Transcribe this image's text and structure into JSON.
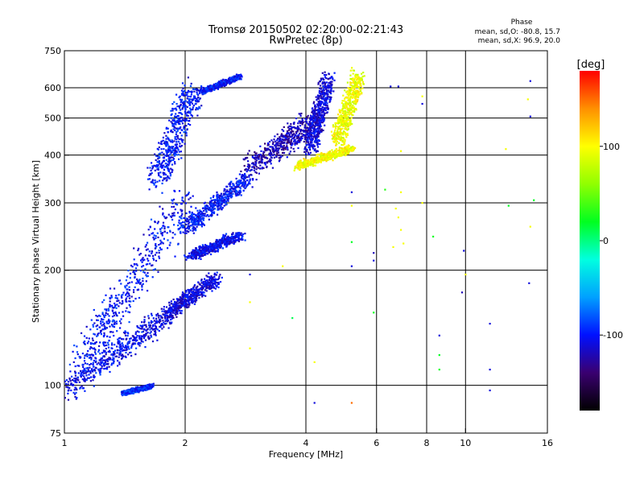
{
  "chart_data": {
    "type": "scatter",
    "title_line1": "Tromsø 20150502 02:20:00-02:21:43",
    "title_line2": "RwPretec (8p)",
    "xlabel": "Frequency [MHz]",
    "ylabel": "Stationary phase Virtual Height [km]",
    "x_scale": "log",
    "y_scale": "log",
    "xlim": [
      1,
      16
    ],
    "ylim": [
      75,
      750
    ],
    "x_ticks": [
      1,
      2,
      4,
      6,
      8,
      10,
      16
    ],
    "y_ticks": [
      75,
      100,
      200,
      300,
      400,
      500,
      600,
      750
    ],
    "grid_x": [
      2,
      4,
      6,
      8,
      10
    ],
    "grid_y": [
      100,
      200,
      300,
      400,
      500,
      600
    ],
    "colorbar": {
      "label": "[deg]",
      "range": [
        -180,
        180
      ],
      "ticks": [
        100,
        0,
        -100
      ],
      "colors": [
        "#000000",
        "#3a0070",
        "#0010ff",
        "#00a0ff",
        "#00ffe0",
        "#00ff20",
        "#90ff00",
        "#ffff00",
        "#ff9000",
        "#ff0000"
      ]
    },
    "phase_stats": {
      "title": "Phase",
      "line1": "mean, sd,O: -80.8, 15.7",
      "line2": "mean, sd,X:  96.9, 20.0"
    },
    "traces": [
      {
        "name": "lower-band",
        "f": [
          1.0,
          1.8
        ],
        "h": [
          93,
          158
        ],
        "phase": -105,
        "spread": 0.1
      },
      {
        "name": "low-echo",
        "f": [
          1.4,
          1.65
        ],
        "h": [
          95,
          100
        ],
        "phase": -95,
        "spread": 0.03
      },
      {
        "name": "E-F1-column",
        "f": [
          1.1,
          2.0
        ],
        "h": [
          105,
          330
        ],
        "phase": -100,
        "spread": 0.14
      },
      {
        "name": "F1-lower-trace",
        "f": [
          1.8,
          2.4
        ],
        "h": [
          150,
          195
        ],
        "phase": -110,
        "spread": 0.07
      },
      {
        "name": "F-spread-column",
        "f": [
          1.7,
          2.1
        ],
        "h": [
          330,
          630
        ],
        "phase": -100,
        "spread": 0.12
      },
      {
        "name": "mid-trace",
        "f": [
          2.05,
          2.75
        ],
        "h": [
          215,
          250
        ],
        "phase": -105,
        "spread": 0.06
      },
      {
        "name": "F2-O-trace",
        "f": [
          2.0,
          2.9
        ],
        "h": [
          250,
          360
        ],
        "phase": -100,
        "spread": 0.07
      },
      {
        "name": "upper-arm",
        "f": [
          2.2,
          2.75
        ],
        "h": [
          580,
          650
        ],
        "phase": -100,
        "spread": 0.03
      },
      {
        "name": "F2-O-cusp",
        "f": [
          2.9,
          4.2
        ],
        "h": [
          360,
          510
        ],
        "phase": -120,
        "spread": 0.12
      },
      {
        "name": "F2-O-top",
        "f": [
          4.1,
          4.55
        ],
        "h": [
          400,
          660
        ],
        "phase": -110,
        "spread": 0.08
      },
      {
        "name": "F2-X-trace",
        "f": [
          3.8,
          5.2
        ],
        "h": [
          370,
          420
        ],
        "phase": 97,
        "spread": 0.05
      },
      {
        "name": "F2-X-top",
        "f": [
          4.8,
          5.4
        ],
        "h": [
          420,
          660
        ],
        "phase": 95,
        "spread": 0.08
      }
    ],
    "sparse_points": [
      {
        "f": 2.9,
        "h": 195,
        "phase": -110
      },
      {
        "f": 2.9,
        "h": 165,
        "phase": 97
      },
      {
        "f": 2.9,
        "h": 125,
        "phase": 98
      },
      {
        "f": 3.5,
        "h": 205,
        "phase": 98
      },
      {
        "f": 3.7,
        "h": 150,
        "phase": 10
      },
      {
        "f": 4.2,
        "h": 90,
        "phase": -110
      },
      {
        "f": 4.2,
        "h": 115,
        "phase": 97
      },
      {
        "f": 5.2,
        "h": 320,
        "phase": -110
      },
      {
        "f": 5.2,
        "h": 295,
        "phase": 97
      },
      {
        "f": 5.2,
        "h": 237,
        "phase": 20
      },
      {
        "f": 5.2,
        "h": 205,
        "phase": -110
      },
      {
        "f": 5.2,
        "h": 90,
        "phase": 150
      },
      {
        "f": 5.9,
        "h": 222,
        "phase": -120
      },
      {
        "f": 5.9,
        "h": 212,
        "phase": -110
      },
      {
        "f": 5.9,
        "h": 155,
        "phase": 20
      },
      {
        "f": 6.3,
        "h": 325,
        "phase": 30
      },
      {
        "f": 6.5,
        "h": 605,
        "phase": -110
      },
      {
        "f": 6.8,
        "h": 605,
        "phase": -110
      },
      {
        "f": 6.9,
        "h": 410,
        "phase": 97
      },
      {
        "f": 6.9,
        "h": 320,
        "phase": 97
      },
      {
        "f": 6.7,
        "h": 290,
        "phase": 97
      },
      {
        "f": 6.8,
        "h": 275,
        "phase": 97
      },
      {
        "f": 6.9,
        "h": 255,
        "phase": 97
      },
      {
        "f": 7.0,
        "h": 235,
        "phase": 97
      },
      {
        "f": 6.6,
        "h": 230,
        "phase": 97
      },
      {
        "f": 7.8,
        "h": 570,
        "phase": 97
      },
      {
        "f": 7.8,
        "h": 545,
        "phase": -110
      },
      {
        "f": 7.8,
        "h": 300,
        "phase": 97
      },
      {
        "f": 8.3,
        "h": 245,
        "phase": 20
      },
      {
        "f": 8.6,
        "h": 135,
        "phase": -110
      },
      {
        "f": 8.6,
        "h": 120,
        "phase": 20
      },
      {
        "f": 8.6,
        "h": 110,
        "phase": 20
      },
      {
        "f": 9.9,
        "h": 225,
        "phase": -110
      },
      {
        "f": 9.8,
        "h": 175,
        "phase": -120
      },
      {
        "f": 10.0,
        "h": 195,
        "phase": 97
      },
      {
        "f": 11.5,
        "h": 145,
        "phase": -110
      },
      {
        "f": 11.5,
        "h": 110,
        "phase": -110
      },
      {
        "f": 11.5,
        "h": 97,
        "phase": -110
      },
      {
        "f": 12.8,
        "h": 295,
        "phase": 20
      },
      {
        "f": 12.6,
        "h": 415,
        "phase": 97
      },
      {
        "f": 14.5,
        "h": 625,
        "phase": -110
      },
      {
        "f": 14.5,
        "h": 505,
        "phase": -110
      },
      {
        "f": 14.3,
        "h": 560,
        "phase": 97
      },
      {
        "f": 14.8,
        "h": 305,
        "phase": 20
      },
      {
        "f": 14.5,
        "h": 260,
        "phase": 97
      },
      {
        "f": 14.4,
        "h": 185,
        "phase": -110
      }
    ]
  }
}
